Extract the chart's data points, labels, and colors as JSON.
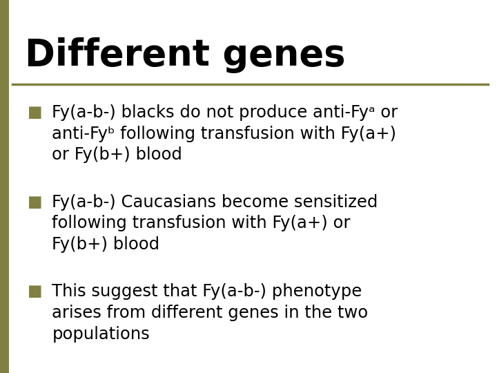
{
  "title": "Different genes",
  "title_fontsize": 38,
  "title_color": "#000000",
  "title_font": "DejaVu Sans",
  "title_bold": true,
  "bg_color": "#ffffff",
  "left_bar_color": "#808040",
  "divider_color": "#808040",
  "bullet_color": "#808040",
  "text_color": "#000000",
  "text_fontsize": 17.5,
  "bullet_items": [
    "Fy(a-b-) blacks do not produce anti-Fyᵃ or\nanti-Fyᵇ following transfusion with Fy(a+)\nor Fy(b+) blood",
    "Fy(a-b-) Caucasians become sensitized\nfollowing transfusion with Fy(a+) or\nFy(b+) blood",
    "This suggest that Fy(a-b-) phenotype\narises from different genes in the two\npopulations"
  ]
}
